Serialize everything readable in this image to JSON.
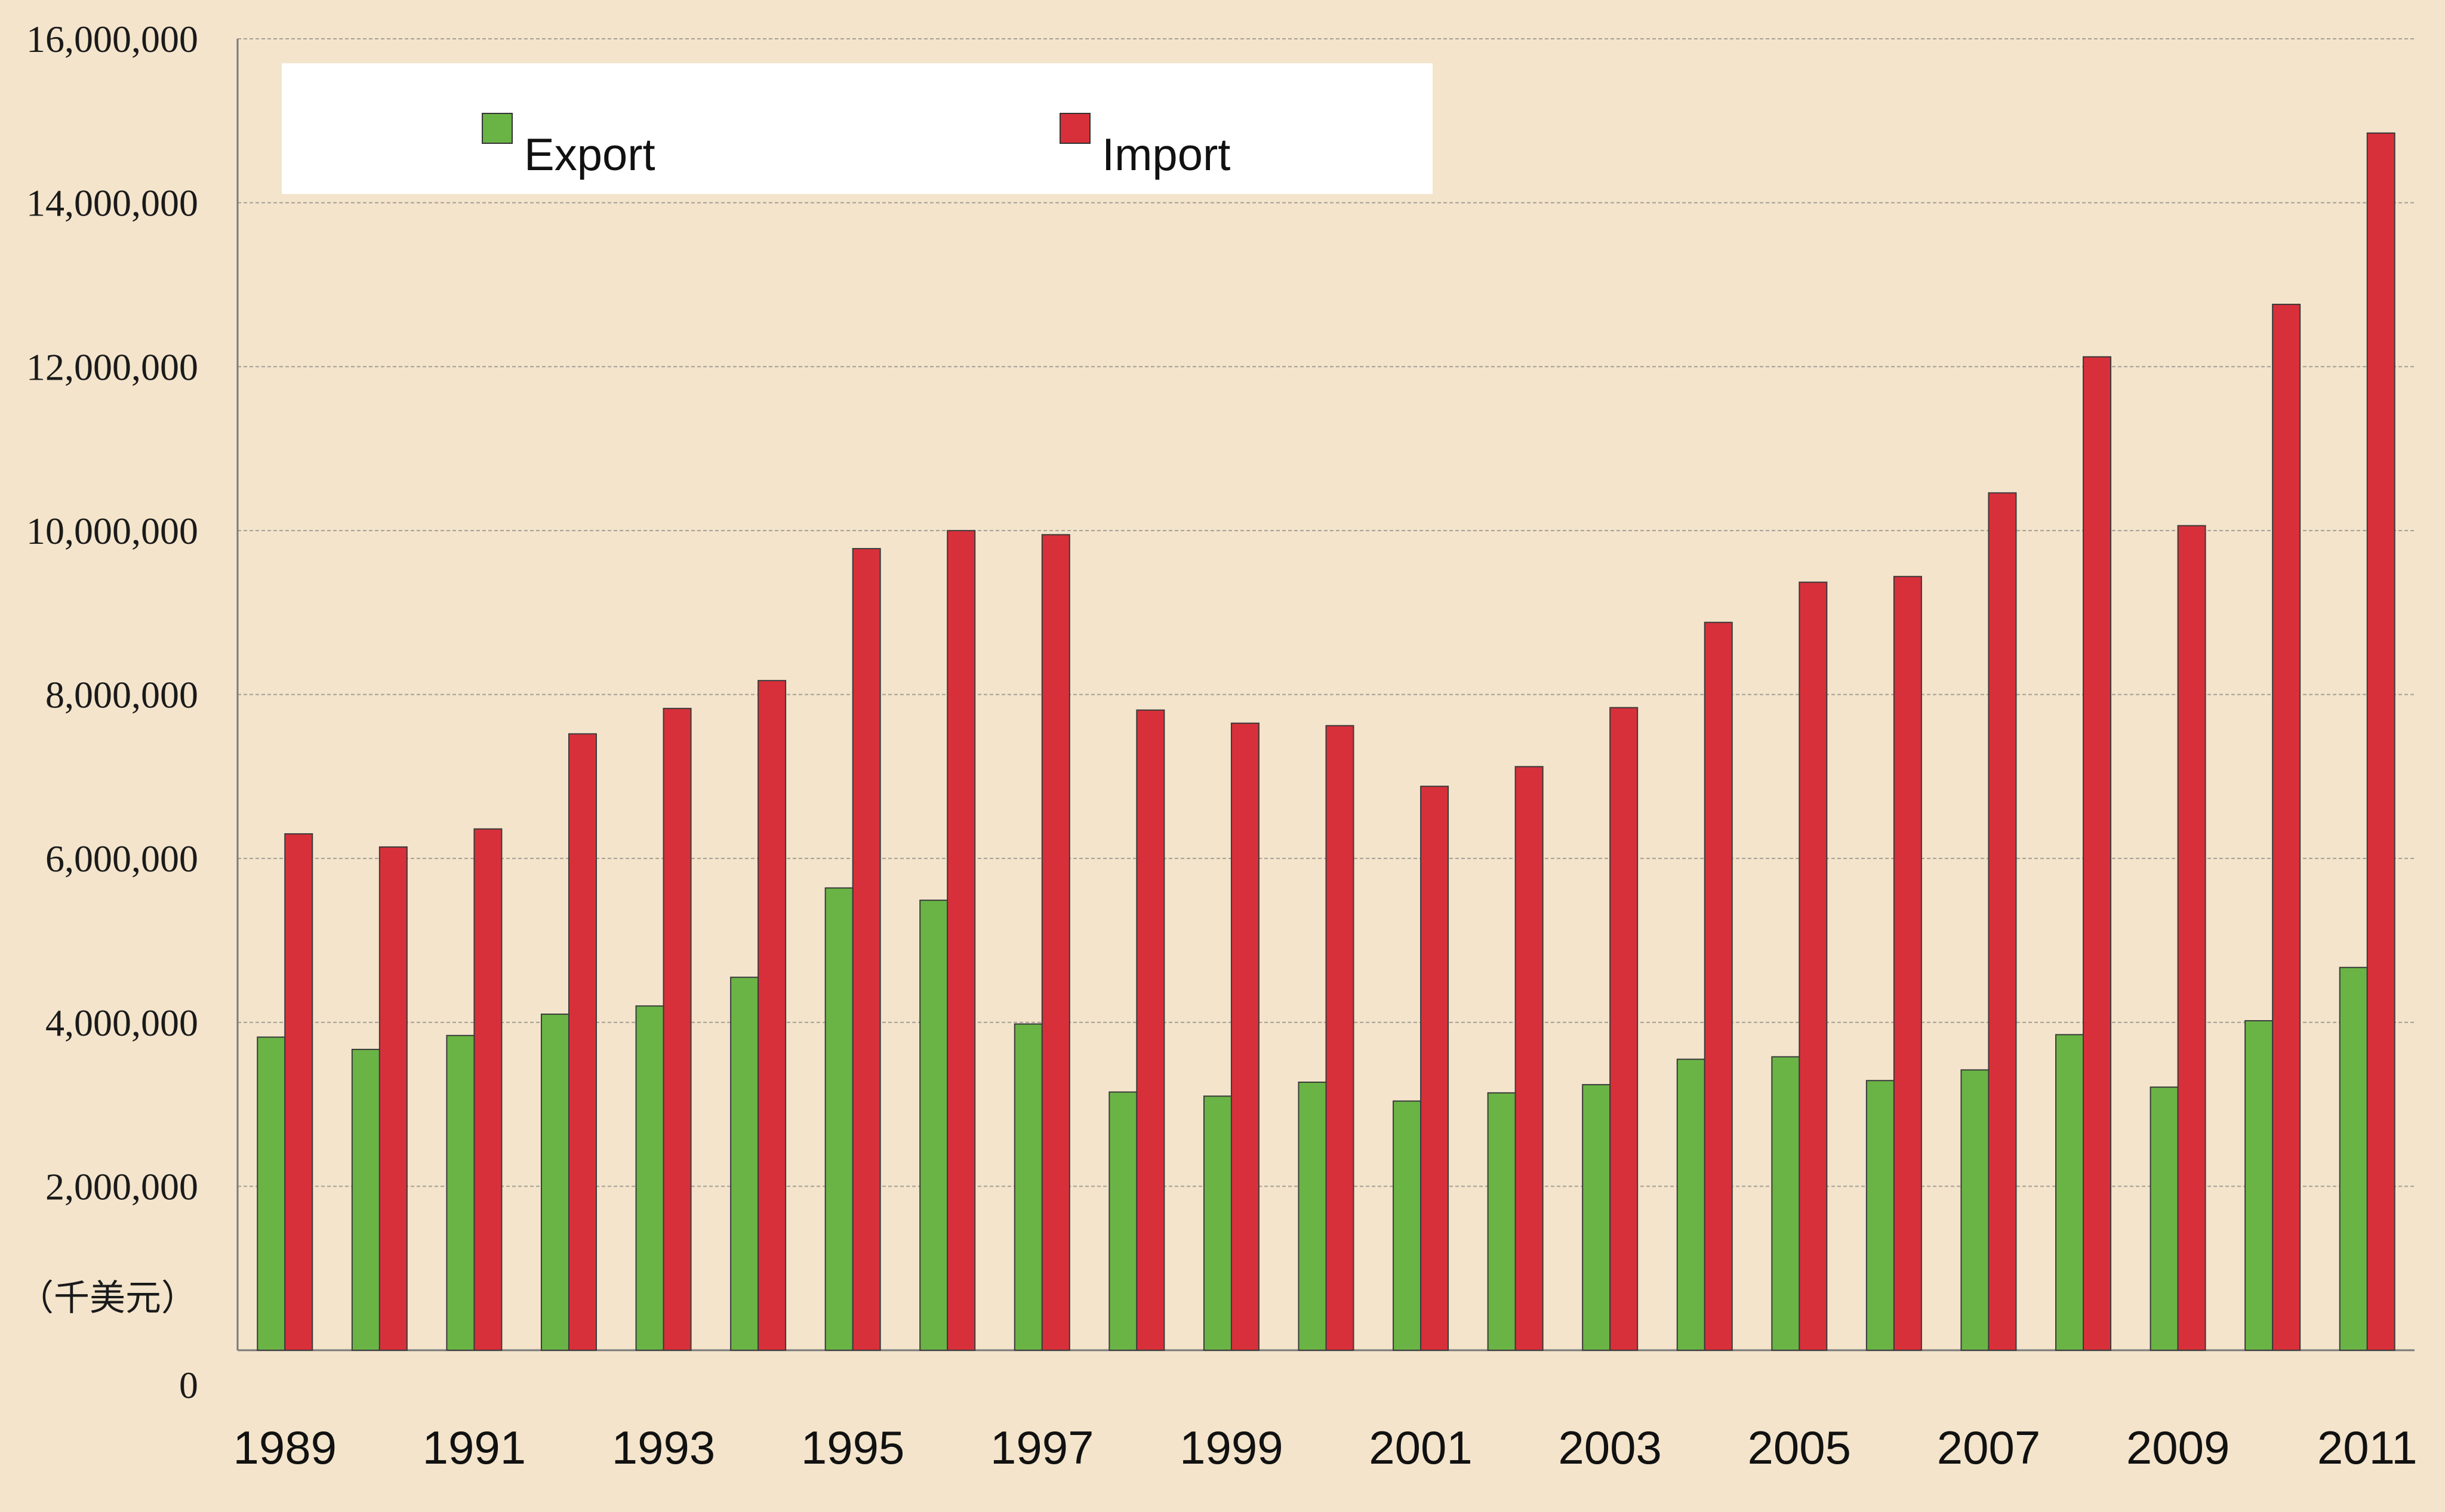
{
  "chart_data": {
    "type": "bar",
    "title": "",
    "xlabel": "",
    "ylabel": "（千美元）",
    "ylim": [
      0,
      16000000
    ],
    "y_ticks": [
      "0",
      "2,000,000",
      "4,000,000",
      "6,000,000",
      "8,000,000",
      "10,000,000",
      "12,000,000",
      "14,000,000",
      "16,000,000"
    ],
    "y_tick_values": [
      0,
      2000000,
      4000000,
      6000000,
      8000000,
      10000000,
      12000000,
      14000000,
      16000000
    ],
    "categories": [
      "1989",
      "1990",
      "1991",
      "1992",
      "1993",
      "1994",
      "1995",
      "1996",
      "1997",
      "1998",
      "1999",
      "2000",
      "2001",
      "2002",
      "2003",
      "2004",
      "2005",
      "2006",
      "2007",
      "2008",
      "2009",
      "2010",
      "2011"
    ],
    "x_tick_labels": [
      "1989",
      "1991",
      "1993",
      "1995",
      "1997",
      "1999",
      "2001",
      "2003",
      "2005",
      "2007",
      "2009",
      "2011"
    ],
    "grid": true,
    "legend_position": "top-left",
    "series": [
      {
        "name": "Export",
        "color": "#6ab446",
        "values": [
          3820000,
          3670000,
          3840000,
          4100000,
          4200000,
          4550000,
          5640000,
          5490000,
          3980000,
          3150000,
          3100000,
          3270000,
          3040000,
          3140000,
          3240000,
          3550000,
          3580000,
          3290000,
          3420000,
          3850000,
          3210000,
          4020000,
          4670000
        ]
      },
      {
        "name": "Import",
        "color": "#d8303a",
        "values": [
          6300000,
          6140000,
          6360000,
          7520000,
          7830000,
          8170000,
          9780000,
          10000000,
          9950000,
          7810000,
          7650000,
          7620000,
          6880000,
          7120000,
          7840000,
          8880000,
          9370000,
          9440000,
          10460000,
          12120000,
          10060000,
          12760000,
          14850000
        ]
      }
    ]
  }
}
